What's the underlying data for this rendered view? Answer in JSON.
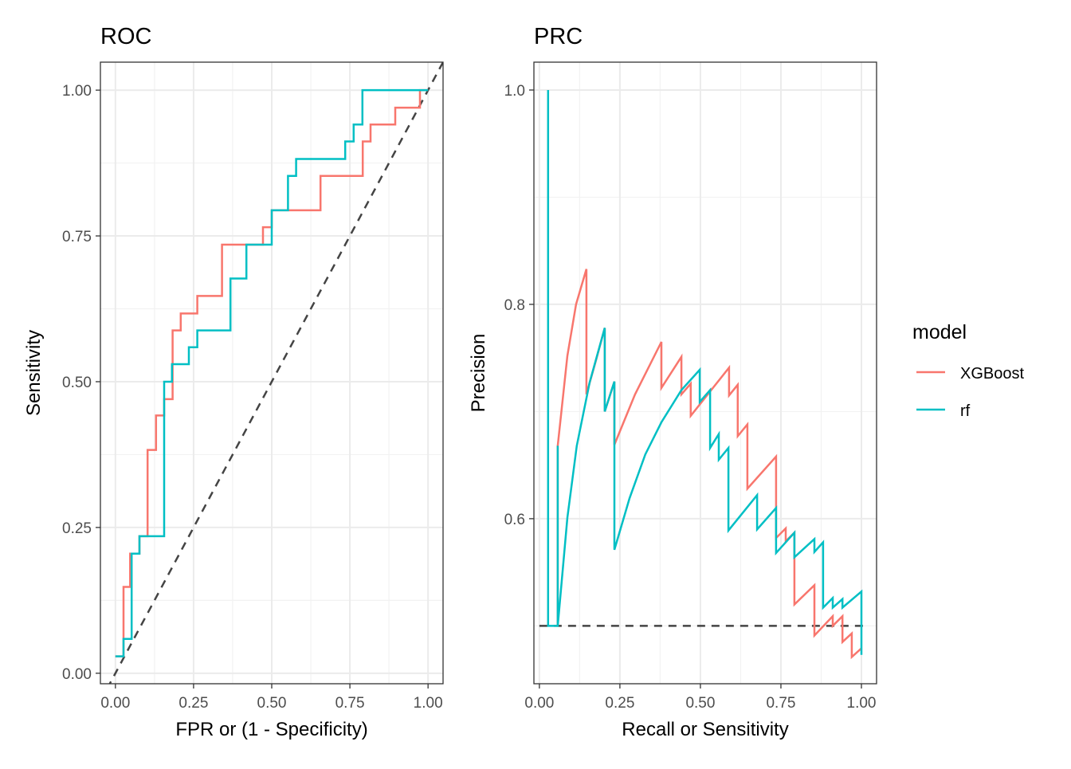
{
  "chart_data": [
    {
      "type": "line",
      "title": "ROC",
      "xlabel": "FPR or (1 - Specificity)",
      "ylabel": "Sensitivity",
      "xlim": [
        -0.048,
        1.048
      ],
      "ylim": [
        -0.018,
        1.048
      ],
      "xticks": [
        "0.00",
        "0.25",
        "0.50",
        "0.75",
        "1.00"
      ],
      "yticks": [
        "0.00",
        "0.25",
        "0.50",
        "0.75",
        "1.00"
      ],
      "xtick_values": [
        0,
        0.25,
        0.5,
        0.75,
        1
      ],
      "ytick_values": [
        0,
        0.25,
        0.5,
        0.75,
        1
      ],
      "grid": true,
      "reference_line": {
        "style": "dashed",
        "color": "#444444",
        "points": [
          [
            -0.048,
            -0.048
          ],
          [
            1.048,
            1.048
          ]
        ]
      },
      "series": [
        {
          "name": "XGBoost",
          "color": "#F8766D",
          "step": true,
          "points": [
            [
              0,
              0.029
            ],
            [
              0.026,
              0.029
            ],
            [
              0.026,
              0.148
            ],
            [
              0.047,
              0.148
            ],
            [
              0.047,
              0.205
            ],
            [
              0.077,
              0.205
            ],
            [
              0.077,
              0.235
            ],
            [
              0.103,
              0.235
            ],
            [
              0.103,
              0.383
            ],
            [
              0.13,
              0.383
            ],
            [
              0.13,
              0.442
            ],
            [
              0.156,
              0.442
            ],
            [
              0.156,
              0.47
            ],
            [
              0.183,
              0.47
            ],
            [
              0.183,
              0.588
            ],
            [
              0.209,
              0.588
            ],
            [
              0.209,
              0.617
            ],
            [
              0.262,
              0.617
            ],
            [
              0.262,
              0.647
            ],
            [
              0.341,
              0.647
            ],
            [
              0.341,
              0.735
            ],
            [
              0.472,
              0.735
            ],
            [
              0.472,
              0.765
            ],
            [
              0.5,
              0.765
            ],
            [
              0.5,
              0.794
            ],
            [
              0.656,
              0.794
            ],
            [
              0.656,
              0.853
            ],
            [
              0.791,
              0.853
            ],
            [
              0.791,
              0.912
            ],
            [
              0.816,
              0.912
            ],
            [
              0.816,
              0.941
            ],
            [
              0.895,
              0.941
            ],
            [
              0.895,
              0.97
            ],
            [
              0.974,
              0.97
            ],
            [
              0.974,
              1.0
            ],
            [
              1.0,
              1.0
            ]
          ]
        },
        {
          "name": "rf",
          "color": "#00BFC4",
          "step": true,
          "points": [
            [
              0,
              0.029
            ],
            [
              0.026,
              0.029
            ],
            [
              0.026,
              0.059
            ],
            [
              0.052,
              0.059
            ],
            [
              0.052,
              0.205
            ],
            [
              0.077,
              0.205
            ],
            [
              0.077,
              0.235
            ],
            [
              0.156,
              0.235
            ],
            [
              0.156,
              0.5
            ],
            [
              0.181,
              0.5
            ],
            [
              0.181,
              0.53
            ],
            [
              0.235,
              0.53
            ],
            [
              0.235,
              0.559
            ],
            [
              0.262,
              0.559
            ],
            [
              0.262,
              0.588
            ],
            [
              0.368,
              0.588
            ],
            [
              0.368,
              0.677
            ],
            [
              0.419,
              0.677
            ],
            [
              0.419,
              0.735
            ],
            [
              0.5,
              0.735
            ],
            [
              0.5,
              0.794
            ],
            [
              0.552,
              0.794
            ],
            [
              0.552,
              0.853
            ],
            [
              0.578,
              0.853
            ],
            [
              0.578,
              0.882
            ],
            [
              0.735,
              0.882
            ],
            [
              0.735,
              0.912
            ],
            [
              0.762,
              0.912
            ],
            [
              0.762,
              0.941
            ],
            [
              0.79,
              0.941
            ],
            [
              0.79,
              1.0
            ],
            [
              1.0,
              1.0
            ]
          ]
        }
      ]
    },
    {
      "type": "line",
      "title": "PRC",
      "xlabel": "Recall or Sensitivity",
      "ylabel": "Precision",
      "xlim": [
        -0.017,
        1.047
      ],
      "ylim": [
        0.446,
        1.026
      ],
      "xticks": [
        "0.00",
        "0.25",
        "0.50",
        "0.75",
        "1.00"
      ],
      "yticks": [
        "0.6",
        "0.8",
        "1.0"
      ],
      "xtick_values": [
        0,
        0.25,
        0.5,
        0.75,
        1
      ],
      "ytick_values": [
        0.6,
        0.8,
        1.0
      ],
      "grid": true,
      "reference_line": {
        "style": "dashed",
        "color": "#444444",
        "points": [
          [
            0,
            0.5
          ],
          [
            1.02,
            0.5
          ]
        ]
      },
      "series": [
        {
          "name": "XGBoost",
          "color": "#F8766D",
          "points": [
            [
              0.057,
              0.5
            ],
            [
              0.057,
              0.668
            ],
            [
              0.087,
              0.752
            ],
            [
              0.114,
              0.8
            ],
            [
              0.146,
              0.833
            ],
            [
              0.146,
              0.716
            ],
            [
              0.176,
              0.748
            ],
            [
              0.203,
              0.778
            ],
            [
              0.203,
              0.7
            ],
            [
              0.233,
              0.728
            ],
            [
              0.233,
              0.669
            ],
            [
              0.297,
              0.716
            ],
            [
              0.379,
              0.765
            ],
            [
              0.379,
              0.722
            ],
            [
              0.441,
              0.751
            ],
            [
              0.441,
              0.716
            ],
            [
              0.47,
              0.726
            ],
            [
              0.47,
              0.696
            ],
            [
              0.589,
              0.741
            ],
            [
              0.589,
              0.715
            ],
            [
              0.616,
              0.725
            ],
            [
              0.616,
              0.677
            ],
            [
              0.646,
              0.688
            ],
            [
              0.646,
              0.628
            ],
            [
              0.735,
              0.658
            ],
            [
              0.735,
              0.582
            ],
            [
              0.765,
              0.591
            ],
            [
              0.765,
              0.579
            ],
            [
              0.792,
              0.587
            ],
            [
              0.792,
              0.52
            ],
            [
              0.854,
              0.538
            ],
            [
              0.854,
              0.491
            ],
            [
              0.911,
              0.509
            ],
            [
              0.911,
              0.5
            ],
            [
              0.941,
              0.509
            ],
            [
              0.941,
              0.485
            ],
            [
              0.97,
              0.493
            ],
            [
              0.97,
              0.471
            ],
            [
              1.0,
              0.479
            ]
          ]
        },
        {
          "name": "rf",
          "color": "#00BFC4",
          "points": [
            [
              0.027,
              1.0
            ],
            [
              0.027,
              0.5
            ],
            [
              0.057,
              0.5
            ],
            [
              0.057,
              0.668
            ],
            [
              0.057,
              0.5
            ],
            [
              0.087,
              0.601
            ],
            [
              0.116,
              0.668
            ],
            [
              0.156,
              0.727
            ],
            [
              0.203,
              0.778
            ],
            [
              0.203,
              0.7
            ],
            [
              0.233,
              0.728
            ],
            [
              0.233,
              0.571
            ],
            [
              0.28,
              0.619
            ],
            [
              0.329,
              0.66
            ],
            [
              0.379,
              0.69
            ],
            [
              0.441,
              0.72
            ],
            [
              0.498,
              0.739
            ],
            [
              0.498,
              0.709
            ],
            [
              0.53,
              0.72
            ],
            [
              0.53,
              0.666
            ],
            [
              0.557,
              0.679
            ],
            [
              0.557,
              0.655
            ],
            [
              0.587,
              0.666
            ],
            [
              0.587,
              0.589
            ],
            [
              0.676,
              0.622
            ],
            [
              0.676,
              0.59
            ],
            [
              0.735,
              0.61
            ],
            [
              0.735,
              0.568
            ],
            [
              0.792,
              0.587
            ],
            [
              0.792,
              0.564
            ],
            [
              0.854,
              0.581
            ],
            [
              0.854,
              0.569
            ],
            [
              0.881,
              0.578
            ],
            [
              0.881,
              0.517
            ],
            [
              0.911,
              0.526
            ],
            [
              0.911,
              0.517
            ],
            [
              0.941,
              0.525
            ],
            [
              0.941,
              0.517
            ],
            [
              1.0,
              0.532
            ],
            [
              1.0,
              0.473
            ]
          ]
        }
      ]
    }
  ],
  "legend": {
    "title": "model",
    "placement": "right",
    "items": [
      {
        "label": "XGBoost",
        "color": "#F8766D"
      },
      {
        "label": "rf",
        "color": "#00BFC4"
      }
    ]
  }
}
